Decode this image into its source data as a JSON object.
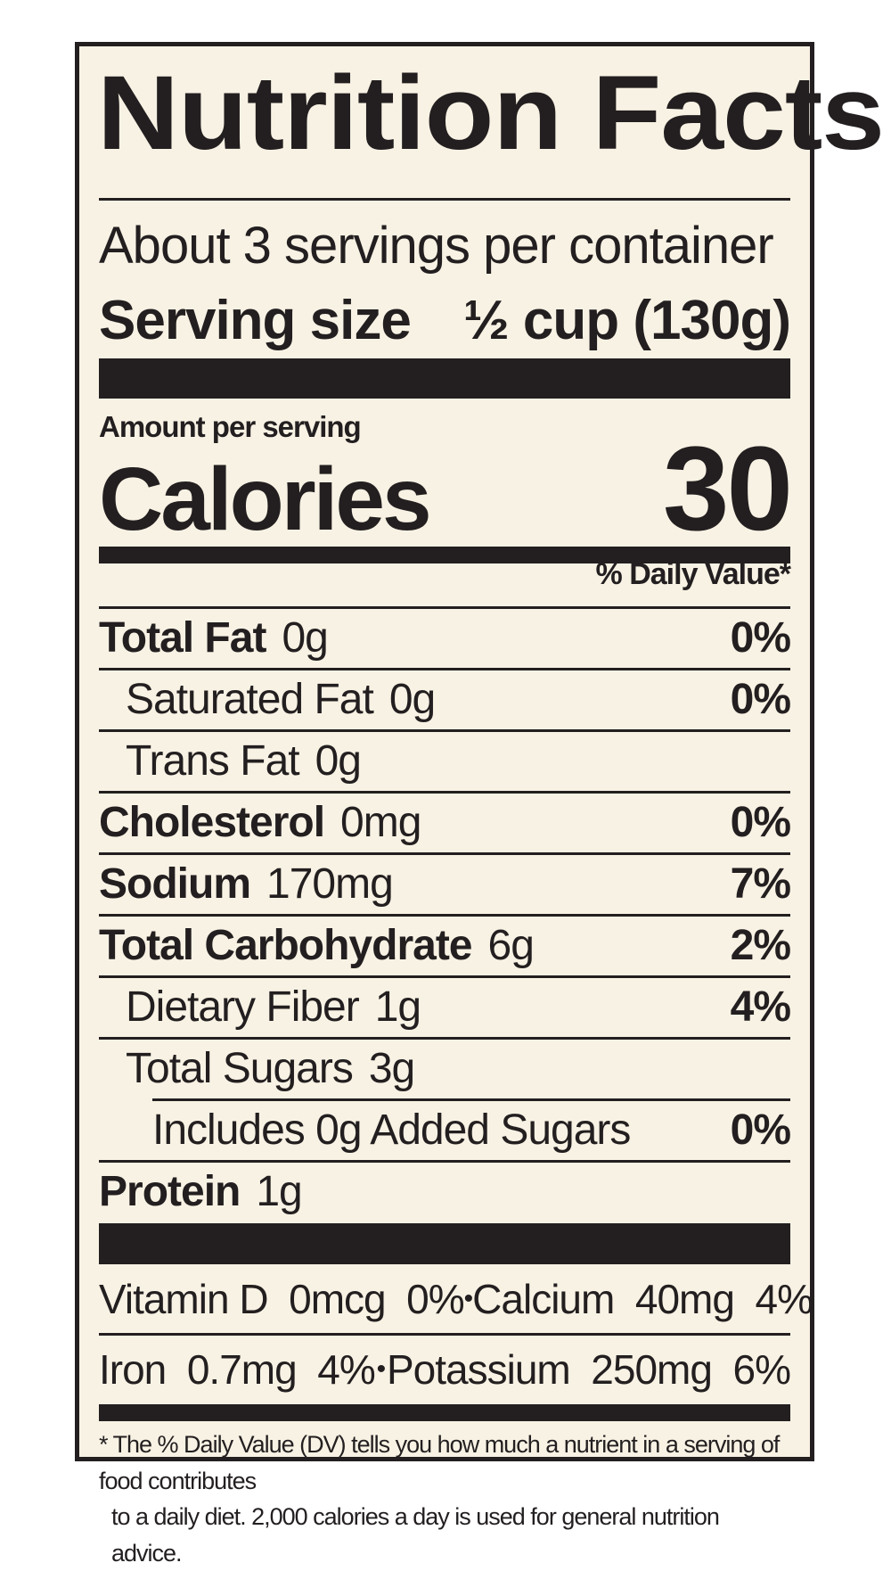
{
  "title": "Nutrition Facts",
  "servings_per_container": "About 3 servings per container",
  "serving_size_label": "Serving size",
  "serving_size_value": "½ cup (130g)",
  "amount_per_serving": "Amount per serving",
  "calories_label": "Calories",
  "calories_value": "30",
  "daily_value_header": "% Daily Value*",
  "nutrients": [
    {
      "name": "Total Fat",
      "amount": "0g",
      "dv": "0%"
    },
    {
      "name": "Saturated Fat",
      "amount": "0g",
      "dv": "0%"
    },
    {
      "name": "Trans Fat",
      "amount": "0g",
      "dv": ""
    },
    {
      "name": "Cholesterol",
      "amount": "0mg",
      "dv": "0%"
    },
    {
      "name": "Sodium",
      "amount": "170mg",
      "dv": "7%"
    },
    {
      "name": "Total Carbohydrate",
      "amount": "6g",
      "dv": "2%"
    },
    {
      "name": "Dietary Fiber",
      "amount": "1g",
      "dv": "4%"
    },
    {
      "name": "Total Sugars",
      "amount": "3g",
      "dv": ""
    },
    {
      "name": "Includes 0g Added Sugars",
      "amount": "",
      "dv": "0%"
    },
    {
      "name": "Protein",
      "amount": "1g",
      "dv": ""
    }
  ],
  "vitamins": [
    {
      "left": "Vitamin D  0mcg  0%",
      "right": "Calcium  40mg  4%"
    },
    {
      "left": "Iron  0.7mg  4%",
      "right": "Potassium  250mg  6%"
    }
  ],
  "bullet": "•",
  "footnote_line1": "* The % Daily Value (DV) tells you how much a nutrient in a serving of food contributes",
  "footnote_line2": "to a daily diet. 2,000 calories a day is used for general nutrition advice."
}
